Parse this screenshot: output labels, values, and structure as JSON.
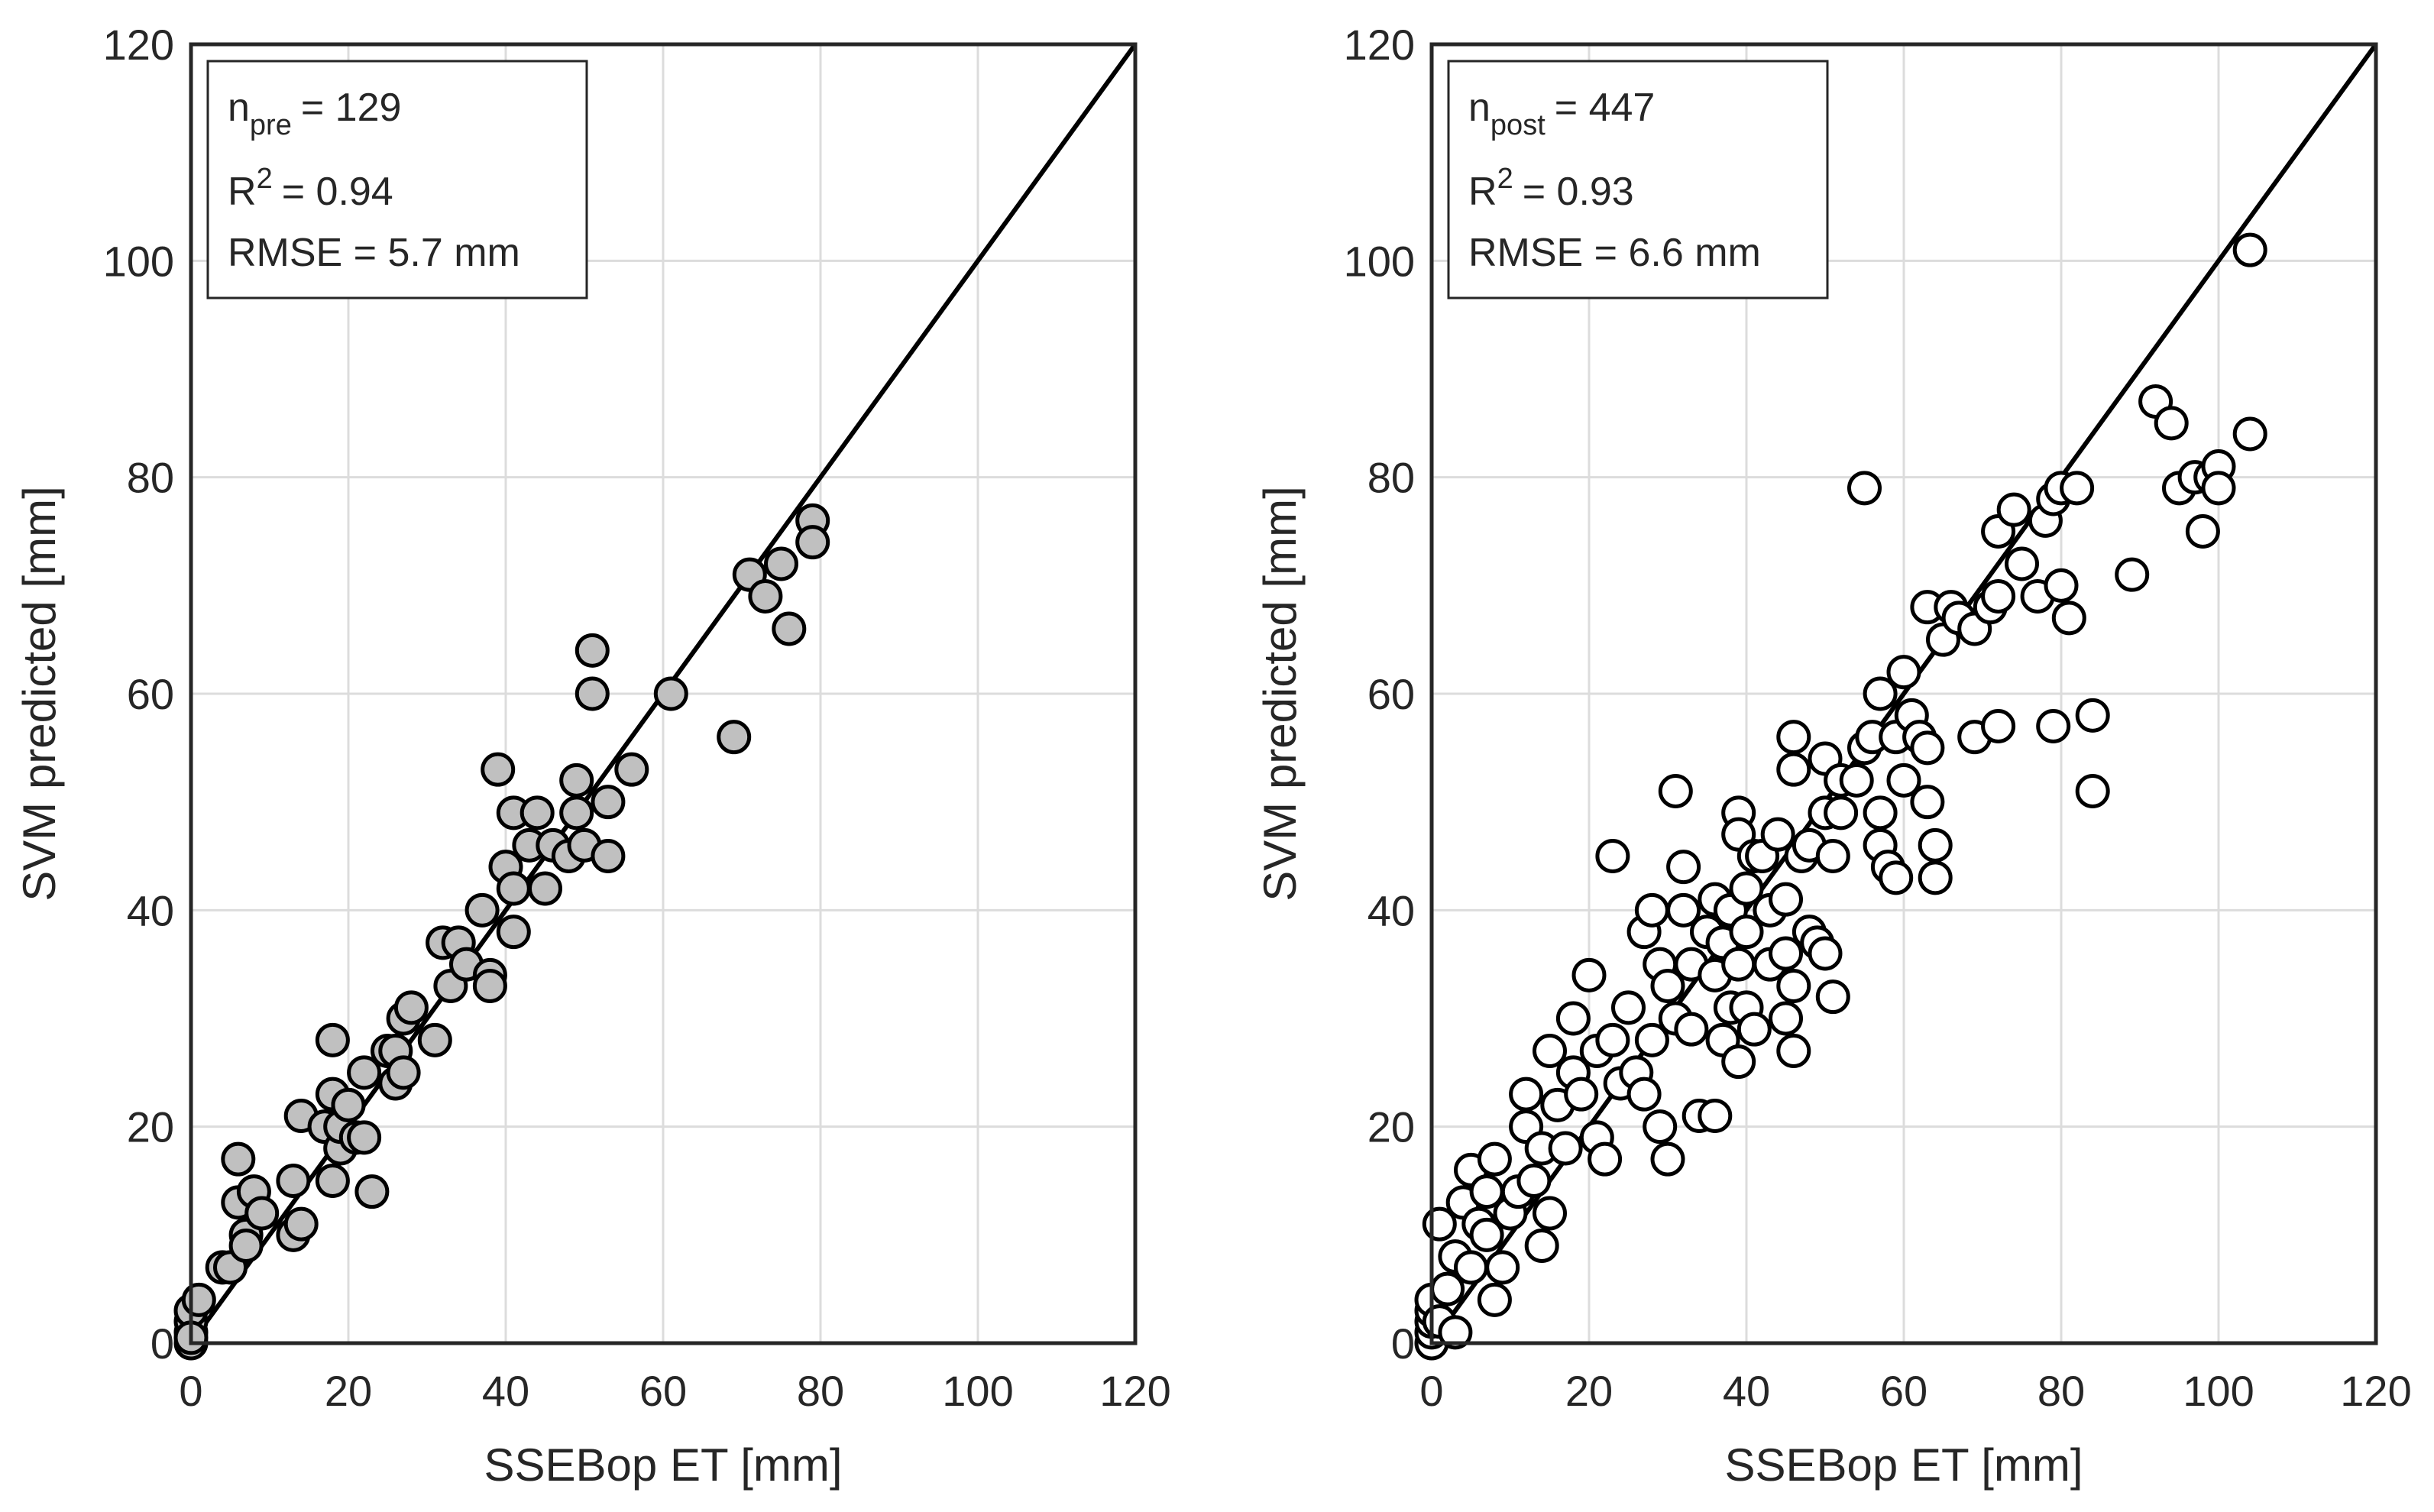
{
  "chart_data": [
    {
      "type": "scatter",
      "xlabel": "SSEBop ET [mm]",
      "ylabel": "SVM predicted [mm]",
      "xlim": [
        0,
        120
      ],
      "ylim": [
        0,
        120
      ],
      "xticks": [
        "0",
        "20",
        "40",
        "60",
        "80",
        "100",
        "120"
      ],
      "yticks": [
        "0",
        "20",
        "40",
        "60",
        "80",
        "100",
        "120"
      ],
      "grid": true,
      "one_to_one_line": true,
      "marker_fill": "#c0c0c0",
      "legend": {
        "n_label": "n",
        "n_subscript": "pre",
        "n_value": "= 129",
        "r2_label": "R",
        "r2_superscript": "2",
        "r2_value": "= 0.94",
        "rmse_text": "RMSE = 5.7 mm"
      },
      "points": [
        [
          0,
          0
        ],
        [
          0,
          1
        ],
        [
          0,
          2
        ],
        [
          0,
          3
        ],
        [
          1,
          4
        ],
        [
          0,
          0.5
        ],
        [
          4,
          7
        ],
        [
          5,
          7
        ],
        [
          6,
          17
        ],
        [
          6,
          13
        ],
        [
          7,
          10
        ],
        [
          7,
          9
        ],
        [
          8,
          14
        ],
        [
          9,
          12
        ],
        [
          13,
          15
        ],
        [
          13,
          10
        ],
        [
          14,
          11
        ],
        [
          14,
          21
        ],
        [
          17,
          20
        ],
        [
          18,
          28
        ],
        [
          18,
          23
        ],
        [
          18,
          15
        ],
        [
          19,
          18
        ],
        [
          19,
          20
        ],
        [
          20,
          22
        ],
        [
          20,
          22
        ],
        [
          21,
          19
        ],
        [
          22,
          25
        ],
        [
          22,
          19
        ],
        [
          23,
          14
        ],
        [
          25,
          27
        ],
        [
          26,
          27
        ],
        [
          26,
          24
        ],
        [
          27,
          25
        ],
        [
          27,
          30
        ],
        [
          28,
          31
        ],
        [
          31,
          28
        ],
        [
          32,
          37
        ],
        [
          33,
          33
        ],
        [
          34,
          37
        ],
        [
          35,
          35
        ],
        [
          37,
          40
        ],
        [
          38,
          34
        ],
        [
          38,
          33
        ],
        [
          39,
          53
        ],
        [
          40,
          44
        ],
        [
          41,
          49
        ],
        [
          41,
          38
        ],
        [
          41,
          42
        ],
        [
          43,
          46
        ],
        [
          44,
          49
        ],
        [
          45,
          42
        ],
        [
          46,
          46
        ],
        [
          48,
          45
        ],
        [
          49,
          52
        ],
        [
          49,
          49
        ],
        [
          50,
          46
        ],
        [
          51,
          64
        ],
        [
          51,
          60
        ],
        [
          53,
          50
        ],
        [
          53,
          45
        ],
        [
          56,
          53
        ],
        [
          61,
          60
        ],
        [
          69,
          56
        ],
        [
          71,
          71
        ],
        [
          73,
          69
        ],
        [
          75,
          72
        ],
        [
          76,
          66
        ],
        [
          79,
          76
        ],
        [
          79,
          74
        ]
      ]
    },
    {
      "type": "scatter",
      "xlabel": "SSEBop ET [mm]",
      "ylabel": "SVM predicted [mm]",
      "xlim": [
        0,
        120
      ],
      "ylim": [
        0,
        120
      ],
      "xticks": [
        "0",
        "20",
        "40",
        "60",
        "80",
        "100",
        "120"
      ],
      "yticks": [
        "0",
        "20",
        "40",
        "60",
        "80",
        "100",
        "120"
      ],
      "grid": true,
      "one_to_one_line": true,
      "marker_fill": "#ffffff",
      "legend": {
        "n_label": "n",
        "n_subscript": "post",
        "n_value": "= 447",
        "r2_label": "R",
        "r2_superscript": "2",
        "r2_value": "= 0.93",
        "rmse_text": "RMSE = 6.6 mm"
      },
      "points": [
        [
          0,
          0
        ],
        [
          0,
          1
        ],
        [
          0,
          2
        ],
        [
          0,
          3
        ],
        [
          0,
          4
        ],
        [
          1,
          2
        ],
        [
          1,
          11
        ],
        [
          2,
          5
        ],
        [
          3,
          1
        ],
        [
          3,
          8
        ],
        [
          4,
          13
        ],
        [
          5,
          7
        ],
        [
          5,
          16
        ],
        [
          6,
          11
        ],
        [
          7,
          10
        ],
        [
          7,
          14
        ],
        [
          8,
          4
        ],
        [
          8,
          17
        ],
        [
          9,
          7
        ],
        [
          10,
          12
        ],
        [
          11,
          14
        ],
        [
          12,
          20
        ],
        [
          12,
          23
        ],
        [
          13,
          15
        ],
        [
          14,
          9
        ],
        [
          14,
          18
        ],
        [
          15,
          27
        ],
        [
          15,
          12
        ],
        [
          16,
          22
        ],
        [
          17,
          18
        ],
        [
          18,
          30
        ],
        [
          18,
          25
        ],
        [
          19,
          23
        ],
        [
          20,
          34
        ],
        [
          21,
          19
        ],
        [
          21,
          27
        ],
        [
          22,
          17
        ],
        [
          23,
          45
        ],
        [
          23,
          28
        ],
        [
          24,
          24
        ],
        [
          25,
          31
        ],
        [
          26,
          25
        ],
        [
          27,
          38
        ],
        [
          27,
          23
        ],
        [
          28,
          40
        ],
        [
          28,
          28
        ],
        [
          29,
          35
        ],
        [
          29,
          20
        ],
        [
          30,
          17
        ],
        [
          30,
          33
        ],
        [
          31,
          51
        ],
        [
          31,
          30
        ],
        [
          32,
          44
        ],
        [
          32,
          40
        ],
        [
          33,
          35
        ],
        [
          33,
          29
        ],
        [
          34,
          21
        ],
        [
          35,
          38
        ],
        [
          36,
          41
        ],
        [
          36,
          34
        ],
        [
          36,
          21
        ],
        [
          37,
          28
        ],
        [
          37,
          37
        ],
        [
          38,
          40
        ],
        [
          38,
          31
        ],
        [
          39,
          49
        ],
        [
          39,
          47
        ],
        [
          39,
          35
        ],
        [
          39,
          26
        ],
        [
          40,
          42
        ],
        [
          40,
          38
        ],
        [
          40,
          31
        ],
        [
          41,
          45
        ],
        [
          41,
          29
        ],
        [
          42,
          45
        ],
        [
          43,
          35
        ],
        [
          43,
          40
        ],
        [
          44,
          47
        ],
        [
          45,
          36
        ],
        [
          45,
          41
        ],
        [
          45,
          30
        ],
        [
          46,
          56
        ],
        [
          46,
          53
        ],
        [
          46,
          33
        ],
        [
          46,
          27
        ],
        [
          47,
          45
        ],
        [
          48,
          46
        ],
        [
          48,
          38
        ],
        [
          49,
          37
        ],
        [
          50,
          49
        ],
        [
          50,
          54
        ],
        [
          50,
          36
        ],
        [
          51,
          32
        ],
        [
          51,
          45
        ],
        [
          52,
          49
        ],
        [
          52,
          52
        ],
        [
          54,
          52
        ],
        [
          55,
          55
        ],
        [
          55,
          79
        ],
        [
          56,
          56
        ],
        [
          57,
          60
        ],
        [
          57,
          49
        ],
        [
          57,
          46
        ],
        [
          58,
          44
        ],
        [
          59,
          43
        ],
        [
          59,
          56
        ],
        [
          60,
          52
        ],
        [
          60,
          62
        ],
        [
          61,
          58
        ],
        [
          62,
          56
        ],
        [
          63,
          68
        ],
        [
          63,
          55
        ],
        [
          63,
          50
        ],
        [
          64,
          46
        ],
        [
          64,
          43
        ],
        [
          65,
          65
        ],
        [
          66,
          68
        ],
        [
          67,
          67
        ],
        [
          69,
          56
        ],
        [
          69,
          66
        ],
        [
          71,
          68
        ],
        [
          72,
          69
        ],
        [
          72,
          57
        ],
        [
          72,
          75
        ],
        [
          74,
          77
        ],
        [
          75,
          72
        ],
        [
          77,
          69
        ],
        [
          78,
          76
        ],
        [
          79,
          78
        ],
        [
          79,
          57
        ],
        [
          80,
          70
        ],
        [
          80,
          79
        ],
        [
          81,
          67
        ],
        [
          82,
          79
        ],
        [
          84,
          58
        ],
        [
          84,
          51
        ],
        [
          89,
          71
        ],
        [
          92,
          87
        ],
        [
          94,
          85
        ],
        [
          95,
          79
        ],
        [
          97,
          80
        ],
        [
          98,
          75
        ],
        [
          99,
          80
        ],
        [
          100,
          81
        ],
        [
          100,
          79
        ],
        [
          104,
          101
        ],
        [
          104,
          84
        ]
      ]
    }
  ]
}
